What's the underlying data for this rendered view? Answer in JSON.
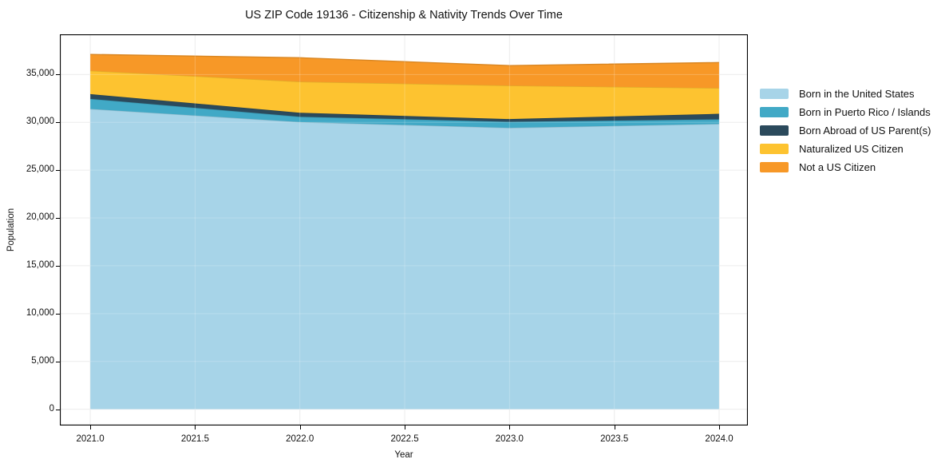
{
  "chart_data": {
    "type": "area",
    "stacked": true,
    "title": "US ZIP Code 19136 - Citizenship & Nativity Trends Over Time",
    "xlabel": "Year",
    "ylabel": "Population",
    "x": [
      2021,
      2022,
      2023,
      2024
    ],
    "series": [
      {
        "name": "Born in the United States",
        "color": "#A7D4E8",
        "values": [
          31400,
          30030,
          29420,
          29830
        ]
      },
      {
        "name": "Born in Puerto Rico / Islands",
        "color": "#41A9C6",
        "values": [
          1050,
          550,
          640,
          480
        ]
      },
      {
        "name": "Born Abroad of US Parent(s)",
        "color": "#2B4A5C",
        "values": [
          500,
          420,
          280,
          580
        ]
      },
      {
        "name": "Naturalized US Citizen",
        "color": "#FDC330",
        "values": [
          2450,
          3250,
          3500,
          2690
        ]
      },
      {
        "name": "Not a US Citizen",
        "color": "#F79827",
        "values": [
          1700,
          2500,
          2090,
          2670
        ]
      }
    ],
    "totals": [
      37100,
      36750,
      35930,
      36250
    ],
    "x_tick_values": [
      2021,
      2021.5,
      2022,
      2022.5,
      2023,
      2023.5,
      2024
    ],
    "x_tick_labels": [
      "2021.0",
      "2021.5",
      "2022.0",
      "2022.5",
      "2023.0",
      "2023.5",
      "2024.0"
    ],
    "y_tick_values": [
      0,
      5000,
      10000,
      15000,
      20000,
      25000,
      30000,
      35000
    ],
    "y_tick_labels": [
      "0",
      "5,000",
      "10,000",
      "15,000",
      "20,000",
      "25,000",
      "30,000",
      "35,000"
    ],
    "xlim": [
      2020.855,
      2024.137
    ],
    "ylim": [
      -1700,
      39200
    ],
    "grid": true,
    "legend_position": "right-outside"
  },
  "colors": {
    "background": "#ffffff",
    "grid": "#e8e8e8",
    "spine": "#000000",
    "text": "#111111"
  }
}
